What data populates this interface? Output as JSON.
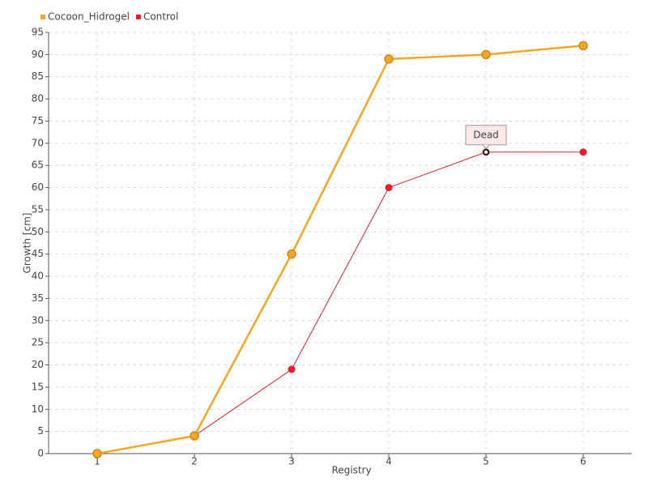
{
  "chart_data": {
    "type": "line",
    "x": [
      1,
      2,
      3,
      4,
      5,
      6
    ],
    "xlim": [
      0.5,
      6.5
    ],
    "xticks": [
      1,
      2,
      3,
      4,
      5,
      6
    ],
    "ylim": [
      0,
      95
    ],
    "yticks": [
      0,
      5,
      10,
      15,
      20,
      25,
      30,
      35,
      40,
      45,
      50,
      55,
      60,
      65,
      70,
      75,
      80,
      85,
      90,
      95
    ],
    "x_label": "Registry",
    "y_label": "Growth [cm]",
    "grid": true,
    "legend": "top-left",
    "series": [
      {
        "name": "Cocoon_Hidrogel",
        "color": "#f5a623",
        "values": [
          0,
          4,
          45,
          89,
          90,
          92
        ]
      },
      {
        "name": "Control",
        "color": "#e0202a",
        "values": [
          0,
          4,
          19,
          60,
          68,
          68
        ]
      }
    ],
    "annotations": [
      {
        "text": "Dead",
        "x": 5,
        "y": 68
      }
    ]
  }
}
